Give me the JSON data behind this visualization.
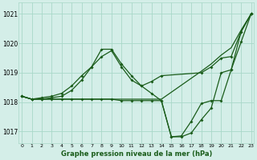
{
  "xlabel": "Graphe pression niveau de la mer (hPa)",
  "bg_color": "#d4eee8",
  "grid_color": "#a8d8c8",
  "line_color": "#1a5c1a",
  "ylim": [
    1016.6,
    1021.4
  ],
  "xlim": [
    -0.3,
    23.3
  ],
  "yticks": [
    1017,
    1018,
    1019,
    1020,
    1021
  ],
  "xticks": [
    0,
    1,
    2,
    3,
    4,
    5,
    6,
    7,
    8,
    9,
    10,
    11,
    12,
    13,
    14,
    15,
    16,
    17,
    18,
    19,
    20,
    21,
    22,
    23
  ],
  "line1": {
    "x": [
      0,
      1,
      2,
      3,
      4,
      5,
      6,
      7,
      8,
      9,
      10,
      11,
      12,
      13,
      14,
      15,
      16,
      17,
      18,
      19,
      20,
      21,
      22,
      23
    ],
    "y": [
      1018.2,
      1018.1,
      1018.1,
      1018.15,
      1018.2,
      1018.4,
      1018.75,
      1019.2,
      1019.8,
      1019.8,
      1019.3,
      1018.9,
      1018.55,
      1018.3,
      1018.05,
      1016.82,
      1016.82,
      1016.95,
      1017.4,
      1017.8,
      1019.0,
      1019.1,
      1020.05,
      1021.0
    ]
  },
  "line2": {
    "x": [
      0,
      1,
      2,
      3,
      4,
      5,
      6,
      7,
      8,
      9,
      10,
      11,
      12,
      13,
      14,
      18,
      19,
      20,
      21,
      22,
      23
    ],
    "y": [
      1018.2,
      1018.1,
      1018.15,
      1018.2,
      1018.3,
      1018.55,
      1018.9,
      1019.2,
      1019.55,
      1019.75,
      1019.2,
      1018.75,
      1018.55,
      1018.7,
      1018.9,
      1019.0,
      1019.2,
      1019.5,
      1019.55,
      1020.4,
      1021.0
    ]
  },
  "line3": {
    "x": [
      0,
      1,
      2,
      3,
      4,
      5,
      6,
      7,
      8,
      9,
      10,
      14,
      18,
      19,
      20,
      21,
      22,
      23
    ],
    "y": [
      1018.2,
      1018.1,
      1018.1,
      1018.1,
      1018.1,
      1018.1,
      1018.1,
      1018.1,
      1018.1,
      1018.1,
      1018.1,
      1018.1,
      1019.05,
      1019.3,
      1019.6,
      1019.85,
      1020.45,
      1021.0
    ]
  },
  "line4": {
    "x": [
      0,
      1,
      2,
      3,
      4,
      5,
      6,
      7,
      8,
      9,
      10,
      11,
      12,
      13,
      14,
      15,
      16,
      17,
      18,
      19,
      20,
      21,
      22,
      23
    ],
    "y": [
      1018.2,
      1018.1,
      1018.1,
      1018.1,
      1018.1,
      1018.1,
      1018.1,
      1018.1,
      1018.1,
      1018.1,
      1018.05,
      1018.05,
      1018.05,
      1018.05,
      1018.05,
      1016.82,
      1016.85,
      1017.35,
      1017.95,
      1018.05,
      1018.05,
      1019.1,
      1020.4,
      1021.0
    ]
  }
}
